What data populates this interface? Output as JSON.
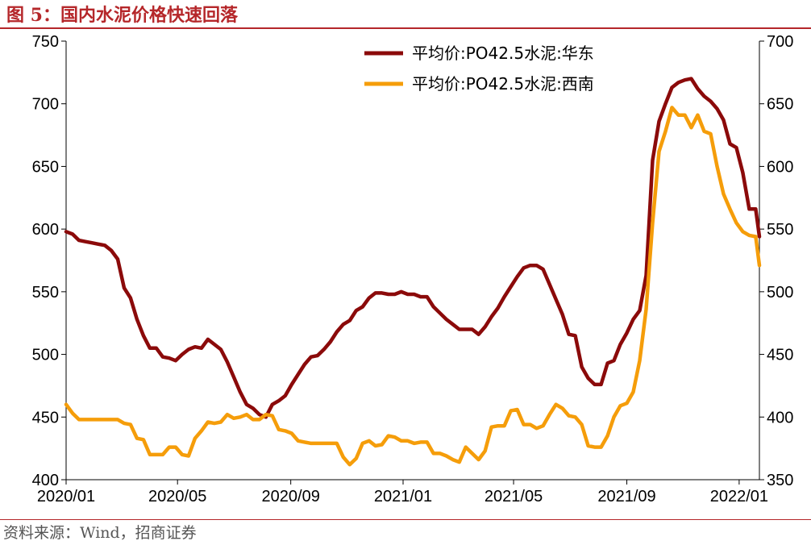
{
  "header": {
    "title": "图 5：国内水泥价格快速回落"
  },
  "footer": {
    "source": "资料来源：Wind，招商证券"
  },
  "chart_data": {
    "type": "line",
    "x_range": [
      "2020-01-01",
      "2022-01-23"
    ],
    "x_ticks": [
      "2020/01",
      "2020/05",
      "2020/09",
      "2021/01",
      "2021/05",
      "2021/09",
      "2022/01"
    ],
    "x_tick_dates": [
      "2020-01-01",
      "2020-05-01",
      "2020-09-01",
      "2021-01-01",
      "2021-05-01",
      "2021-09-01",
      "2022-01-01"
    ],
    "y_left": {
      "min": 400,
      "max": 750,
      "ticks": [
        400,
        450,
        500,
        550,
        600,
        650,
        700,
        750
      ]
    },
    "y_right": {
      "min": 350,
      "max": 700,
      "ticks": [
        350,
        400,
        450,
        500,
        550,
        600,
        650,
        700
      ]
    },
    "grid": false,
    "legend_position": "top-right",
    "series": [
      {
        "name": "平均价:PO42.5水泥:华东",
        "axis": "left",
        "color": "#8b0a0a",
        "points": [
          [
            "2020-01-01",
            598
          ],
          [
            "2020-01-08",
            596
          ],
          [
            "2020-01-15",
            591
          ],
          [
            "2020-01-22",
            590
          ],
          [
            "2020-01-29",
            589
          ],
          [
            "2020-02-05",
            588
          ],
          [
            "2020-02-12",
            587
          ],
          [
            "2020-02-19",
            583
          ],
          [
            "2020-02-26",
            576
          ],
          [
            "2020-03-04",
            553
          ],
          [
            "2020-03-11",
            545
          ],
          [
            "2020-03-18",
            528
          ],
          [
            "2020-03-25",
            515
          ],
          [
            "2020-04-01",
            505
          ],
          [
            "2020-04-08",
            505
          ],
          [
            "2020-04-15",
            498
          ],
          [
            "2020-04-22",
            497
          ],
          [
            "2020-04-29",
            495
          ],
          [
            "2020-05-06",
            500
          ],
          [
            "2020-05-13",
            504
          ],
          [
            "2020-05-20",
            506
          ],
          [
            "2020-05-27",
            505
          ],
          [
            "2020-06-03",
            512
          ],
          [
            "2020-06-10",
            508
          ],
          [
            "2020-06-17",
            504
          ],
          [
            "2020-06-24",
            494
          ],
          [
            "2020-07-01",
            482
          ],
          [
            "2020-07-08",
            470
          ],
          [
            "2020-07-15",
            460
          ],
          [
            "2020-07-22",
            457
          ],
          [
            "2020-07-29",
            452
          ],
          [
            "2020-08-05",
            450
          ],
          [
            "2020-08-12",
            460
          ],
          [
            "2020-08-19",
            463
          ],
          [
            "2020-08-26",
            467
          ],
          [
            "2020-09-02",
            476
          ],
          [
            "2020-09-09",
            484
          ],
          [
            "2020-09-16",
            492
          ],
          [
            "2020-09-23",
            498
          ],
          [
            "2020-09-30",
            499
          ],
          [
            "2020-10-07",
            504
          ],
          [
            "2020-10-14",
            510
          ],
          [
            "2020-10-21",
            518
          ],
          [
            "2020-10-28",
            524
          ],
          [
            "2020-11-04",
            527
          ],
          [
            "2020-11-11",
            535
          ],
          [
            "2020-11-18",
            538
          ],
          [
            "2020-11-25",
            545
          ],
          [
            "2020-12-02",
            549
          ],
          [
            "2020-12-09",
            549
          ],
          [
            "2020-12-16",
            548
          ],
          [
            "2020-12-23",
            548
          ],
          [
            "2020-12-30",
            550
          ],
          [
            "2021-01-06",
            548
          ],
          [
            "2021-01-13",
            548
          ],
          [
            "2021-01-20",
            546
          ],
          [
            "2021-01-27",
            546
          ],
          [
            "2021-02-03",
            538
          ],
          [
            "2021-02-10",
            533
          ],
          [
            "2021-02-17",
            528
          ],
          [
            "2021-02-24",
            524
          ],
          [
            "2021-03-03",
            520
          ],
          [
            "2021-03-10",
            520
          ],
          [
            "2021-03-17",
            520
          ],
          [
            "2021-03-24",
            516
          ],
          [
            "2021-03-31",
            522
          ],
          [
            "2021-04-07",
            530
          ],
          [
            "2021-04-14",
            537
          ],
          [
            "2021-04-21",
            546
          ],
          [
            "2021-04-28",
            554
          ],
          [
            "2021-05-05",
            562
          ],
          [
            "2021-05-12",
            569
          ],
          [
            "2021-05-19",
            571
          ],
          [
            "2021-05-26",
            571
          ],
          [
            "2021-06-02",
            568
          ],
          [
            "2021-06-09",
            556
          ],
          [
            "2021-06-16",
            544
          ],
          [
            "2021-06-23",
            532
          ],
          [
            "2021-06-30",
            516
          ],
          [
            "2021-07-07",
            515
          ],
          [
            "2021-07-14",
            490
          ],
          [
            "2021-07-21",
            481
          ],
          [
            "2021-07-28",
            476
          ],
          [
            "2021-08-04",
            476
          ],
          [
            "2021-08-11",
            493
          ],
          [
            "2021-08-18",
            495
          ],
          [
            "2021-08-25",
            508
          ],
          [
            "2021-09-01",
            517
          ],
          [
            "2021-09-08",
            528
          ],
          [
            "2021-09-15",
            535
          ],
          [
            "2021-09-22",
            563
          ],
          [
            "2021-09-29",
            655
          ],
          [
            "2021-10-06",
            686
          ],
          [
            "2021-10-13",
            700
          ],
          [
            "2021-10-20",
            713
          ],
          [
            "2021-10-27",
            717
          ],
          [
            "2021-11-03",
            719
          ],
          [
            "2021-11-10",
            720
          ],
          [
            "2021-11-17",
            712
          ],
          [
            "2021-11-24",
            706
          ],
          [
            "2021-12-01",
            702
          ],
          [
            "2021-12-08",
            696
          ],
          [
            "2021-12-15",
            687
          ],
          [
            "2021-12-22",
            668
          ],
          [
            "2021-12-29",
            665
          ],
          [
            "2022-01-05",
            645
          ],
          [
            "2022-01-12",
            616
          ],
          [
            "2022-01-19",
            616
          ],
          [
            "2022-01-23",
            594
          ]
        ]
      },
      {
        "name": "平均价:PO42.5水泥:西南",
        "axis": "right",
        "color": "#f59d0a",
        "points": [
          [
            "2020-01-01",
            410
          ],
          [
            "2020-01-08",
            403
          ],
          [
            "2020-01-15",
            398
          ],
          [
            "2020-01-22",
            398
          ],
          [
            "2020-01-29",
            398
          ],
          [
            "2020-02-05",
            398
          ],
          [
            "2020-02-12",
            398
          ],
          [
            "2020-02-19",
            398
          ],
          [
            "2020-02-26",
            398
          ],
          [
            "2020-03-04",
            395
          ],
          [
            "2020-03-11",
            394
          ],
          [
            "2020-03-18",
            383
          ],
          [
            "2020-03-25",
            382
          ],
          [
            "2020-04-01",
            370
          ],
          [
            "2020-04-08",
            370
          ],
          [
            "2020-04-15",
            370
          ],
          [
            "2020-04-22",
            376
          ],
          [
            "2020-04-29",
            376
          ],
          [
            "2020-05-06",
            370
          ],
          [
            "2020-05-13",
            369
          ],
          [
            "2020-05-20",
            383
          ],
          [
            "2020-05-27",
            389
          ],
          [
            "2020-06-03",
            396
          ],
          [
            "2020-06-10",
            395
          ],
          [
            "2020-06-17",
            396
          ],
          [
            "2020-06-24",
            402
          ],
          [
            "2020-07-01",
            399
          ],
          [
            "2020-07-08",
            400
          ],
          [
            "2020-07-15",
            402
          ],
          [
            "2020-07-22",
            398
          ],
          [
            "2020-07-29",
            398
          ],
          [
            "2020-08-05",
            402
          ],
          [
            "2020-08-12",
            401
          ],
          [
            "2020-08-19",
            390
          ],
          [
            "2020-08-26",
            389
          ],
          [
            "2020-09-02",
            387
          ],
          [
            "2020-09-09",
            381
          ],
          [
            "2020-09-16",
            380
          ],
          [
            "2020-09-23",
            379
          ],
          [
            "2020-09-30",
            379
          ],
          [
            "2020-10-07",
            379
          ],
          [
            "2020-10-14",
            379
          ],
          [
            "2020-10-21",
            379
          ],
          [
            "2020-10-28",
            368
          ],
          [
            "2020-11-04",
            362
          ],
          [
            "2020-11-11",
            367
          ],
          [
            "2020-11-18",
            379
          ],
          [
            "2020-11-25",
            381
          ],
          [
            "2020-12-02",
            377
          ],
          [
            "2020-12-09",
            378
          ],
          [
            "2020-12-16",
            385
          ],
          [
            "2020-12-23",
            384
          ],
          [
            "2020-12-30",
            381
          ],
          [
            "2021-01-06",
            381
          ],
          [
            "2021-01-13",
            379
          ],
          [
            "2021-01-20",
            380
          ],
          [
            "2021-01-27",
            380
          ],
          [
            "2021-02-03",
            371
          ],
          [
            "2021-02-10",
            371
          ],
          [
            "2021-02-17",
            369
          ],
          [
            "2021-02-24",
            366
          ],
          [
            "2021-03-03",
            364
          ],
          [
            "2021-03-10",
            376
          ],
          [
            "2021-03-17",
            371
          ],
          [
            "2021-03-24",
            366
          ],
          [
            "2021-03-31",
            373
          ],
          [
            "2021-04-07",
            392
          ],
          [
            "2021-04-14",
            393
          ],
          [
            "2021-04-21",
            393
          ],
          [
            "2021-04-28",
            405
          ],
          [
            "2021-05-05",
            406
          ],
          [
            "2021-05-12",
            394
          ],
          [
            "2021-05-19",
            394
          ],
          [
            "2021-05-26",
            391
          ],
          [
            "2021-06-02",
            393
          ],
          [
            "2021-06-09",
            402
          ],
          [
            "2021-06-16",
            410
          ],
          [
            "2021-06-23",
            407
          ],
          [
            "2021-06-30",
            401
          ],
          [
            "2021-07-07",
            400
          ],
          [
            "2021-07-14",
            394
          ],
          [
            "2021-07-21",
            377
          ],
          [
            "2021-07-28",
            376
          ],
          [
            "2021-08-04",
            376
          ],
          [
            "2021-08-11",
            385
          ],
          [
            "2021-08-18",
            400
          ],
          [
            "2021-08-25",
            409
          ],
          [
            "2021-09-01",
            411
          ],
          [
            "2021-09-08",
            420
          ],
          [
            "2021-09-15",
            445
          ],
          [
            "2021-09-22",
            486
          ],
          [
            "2021-09-29",
            555
          ],
          [
            "2021-10-06",
            612
          ],
          [
            "2021-10-13",
            628
          ],
          [
            "2021-10-20",
            647
          ],
          [
            "2021-10-27",
            641
          ],
          [
            "2021-11-03",
            641
          ],
          [
            "2021-11-10",
            631
          ],
          [
            "2021-11-17",
            641
          ],
          [
            "2021-11-24",
            628
          ],
          [
            "2021-12-01",
            626
          ],
          [
            "2021-12-08",
            600
          ],
          [
            "2021-12-15",
            578
          ],
          [
            "2021-12-22",
            566
          ],
          [
            "2021-12-29",
            555
          ],
          [
            "2022-01-05",
            548
          ],
          [
            "2022-01-12",
            545
          ],
          [
            "2022-01-19",
            544
          ],
          [
            "2022-01-23",
            521
          ]
        ]
      }
    ]
  }
}
